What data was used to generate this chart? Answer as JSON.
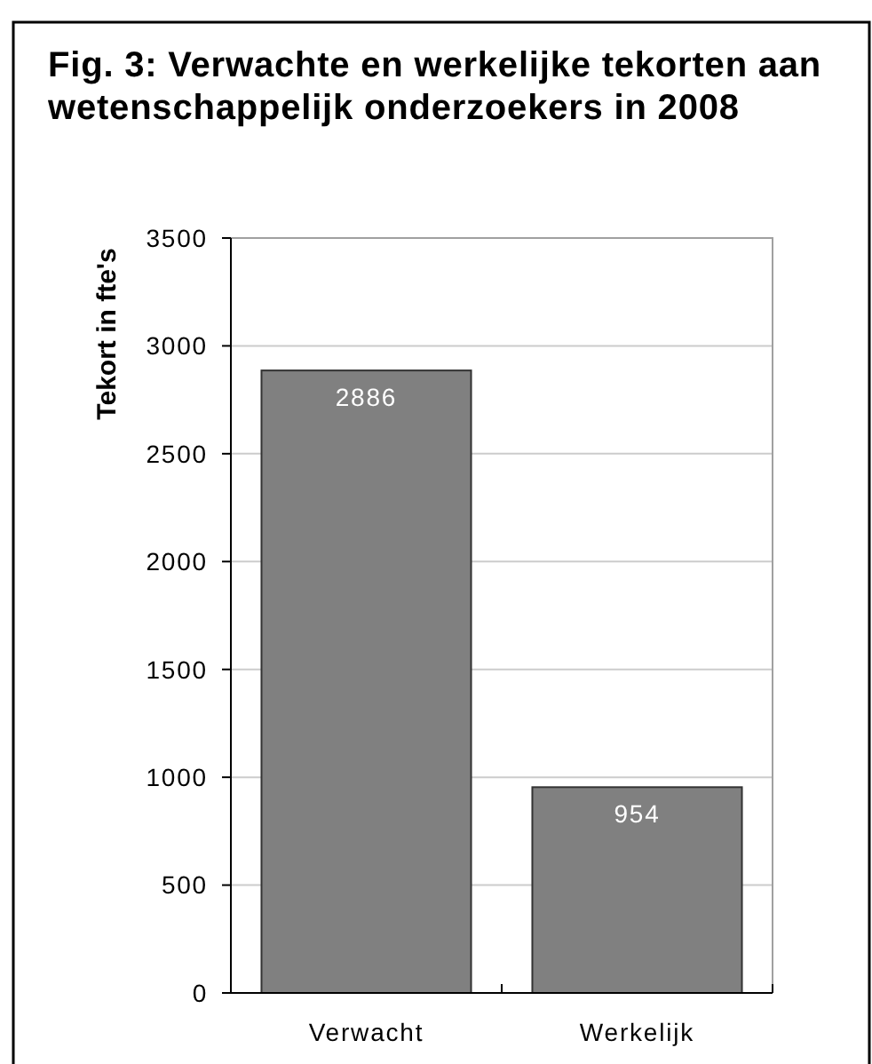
{
  "chart_data": {
    "type": "bar",
    "title": "Fig. 3: Verwachte en werkelijke tekorten aan wetenschappelijk onderzoekers in 2008",
    "ylabel": "Tekort in fte's",
    "categories": [
      "Verwacht",
      "Werkelijk"
    ],
    "values": [
      2886,
      954
    ],
    "color": "#808080",
    "ylim": [
      0,
      3500
    ],
    "yticks": [
      0,
      500,
      1000,
      1500,
      2000,
      2500,
      3000,
      3500
    ],
    "grid": "y",
    "data_labels": true
  }
}
